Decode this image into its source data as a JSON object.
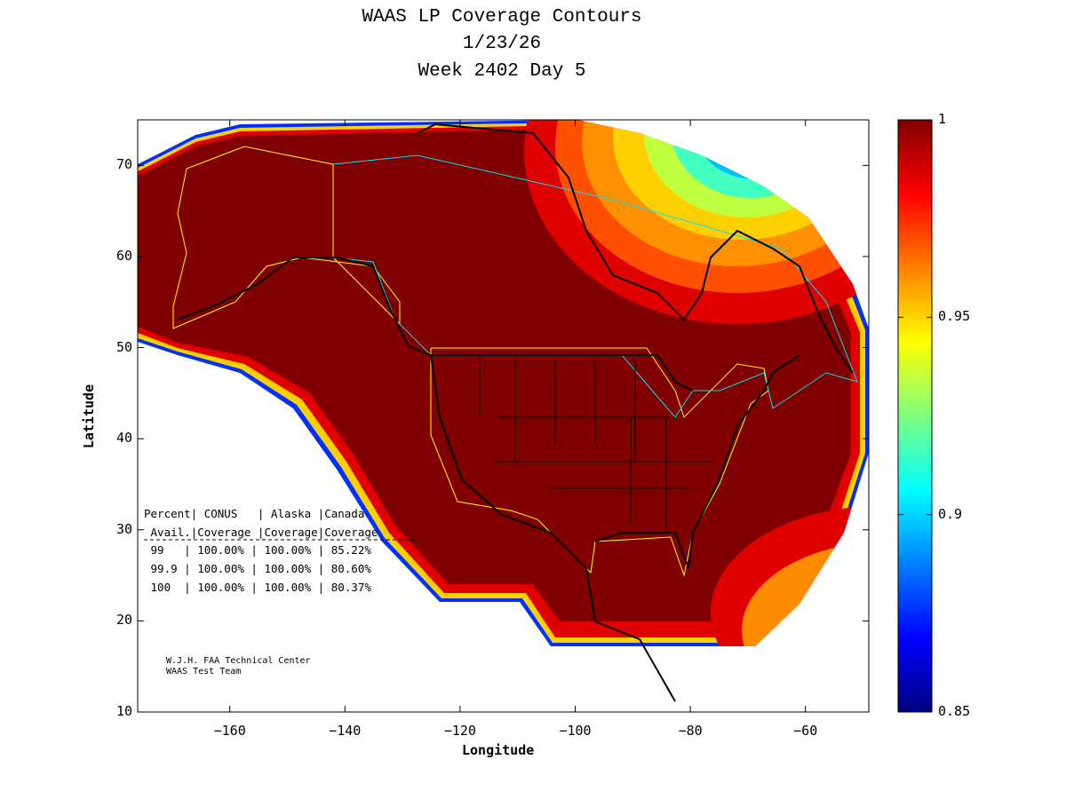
{
  "title": {
    "line1": "WAAS LP Coverage Contours",
    "line2": "1/23/26",
    "line3": "Week 2402 Day 5"
  },
  "axes": {
    "xlabel": "Longitude",
    "ylabel": "Latitude",
    "xlim": [
      -176,
      -49
    ],
    "ylim": [
      10,
      75
    ],
    "xticks": [
      -160,
      -140,
      -120,
      -100,
      -80,
      -60
    ],
    "yticks": [
      10,
      20,
      30,
      40,
      50,
      60,
      70
    ]
  },
  "colorbar": {
    "min": 0.85,
    "max": 1,
    "ticks": [
      "1",
      "0.95",
      "0.9",
      "0.85"
    ],
    "tick_values": [
      1,
      0.95,
      0.9,
      0.85
    ],
    "colormap": "jet"
  },
  "table": {
    "header1": "Percent| CONUS   | Alaska |Canada",
    "header2": " Avail.|Coverage |Coverage|Coverage",
    "separator": "-----------------------------------",
    "rows": [
      " 99   | 100.00% | 100.00% | 85.22%",
      " 99.9 | 100.00% | 100.00% | 80.60%",
      " 100  | 100.00% | 100.00% | 80.37%"
    ]
  },
  "credit": {
    "line1": "W.J.H. FAA Technical Center",
    "line2": "WAAS Test Team"
  },
  "colors": {
    "full": "#800000",
    "red": "#e00000",
    "orange": "#ff8c00",
    "yellow": "#ffff00",
    "cyan": "#00e0ff",
    "blue": "#0030ff"
  }
}
